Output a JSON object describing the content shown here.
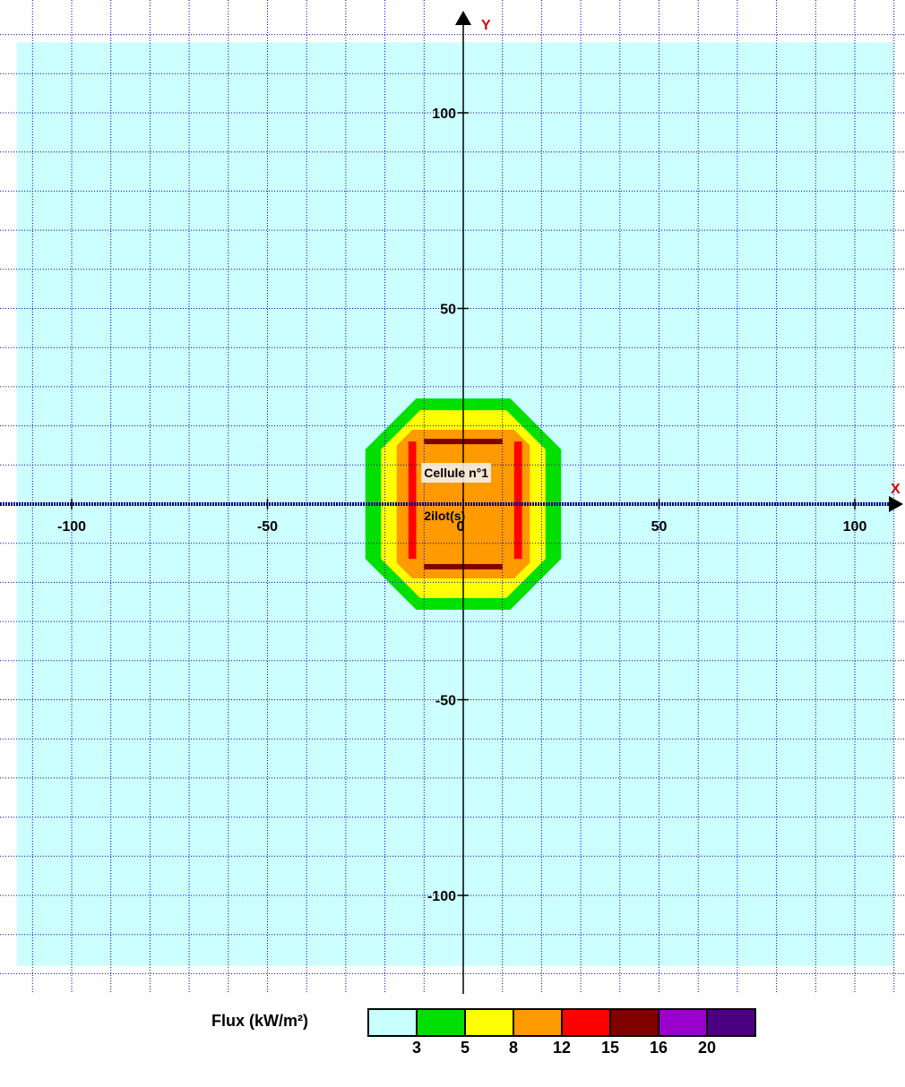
{
  "chart_data": {
    "type": "heatmap",
    "title": "",
    "xlabel": "X",
    "ylabel": "Y",
    "xlim": [
      -115,
      112
    ],
    "ylim": [
      -126,
      128
    ],
    "x_ticks": [
      -100,
      -50,
      0,
      50,
      100
    ],
    "y_ticks": [
      100,
      50,
      -50,
      -100
    ],
    "x_tick_labels": [
      "-100",
      "-50",
      "0",
      "50",
      "100"
    ],
    "y_tick_labels": [
      "100",
      "50",
      "-50",
      "-100"
    ],
    "grid": true,
    "grid_step": 10,
    "background_extent": {
      "x": [
        -114,
        110
      ],
      "y": [
        -118,
        118
      ]
    },
    "zones": [
      {
        "flux_min": 3,
        "color": "#00e000",
        "half_width": 25,
        "half_height": 27,
        "corner_cut": 13
      },
      {
        "flux_min": 5,
        "color": "#ffff00",
        "half_width": 21,
        "half_height": 24,
        "corner_cut": 10
      },
      {
        "flux_min": 8,
        "color": "#ff9a00",
        "half_width": 17,
        "half_height": 19,
        "corner_cut": 4
      }
    ],
    "walls": [
      {
        "flux_min": 12,
        "color": "#ff0000",
        "orientation": "vertical",
        "x": [
          -14,
          -12,
          13,
          15
        ],
        "y_range": [
          -14,
          16
        ]
      },
      {
        "flux_min": 15,
        "color": "#800000",
        "orientation": "horizontal",
        "y": [
          16,
          -16
        ],
        "x_range": [
          -10,
          10
        ]
      }
    ],
    "annotations": [
      {
        "text": "Cellule n°1",
        "x": -10,
        "y": 8
      },
      {
        "text": "2ilot(s)",
        "x": -10,
        "y": -3
      }
    ],
    "legend": {
      "title": "Flux (kW/m²)",
      "placement": "bottom",
      "colors": [
        "#c8ffff",
        "#00e000",
        "#ffff00",
        "#ff9a00",
        "#ff0000",
        "#800000",
        "#9900cc",
        "#4b0082"
      ],
      "labels": [
        "3",
        "5",
        "8",
        "12",
        "15",
        "16",
        "20"
      ]
    },
    "colors": {
      "background_fill": "#ccffff",
      "grid_line": "#0000cc",
      "axis_line": "#000000",
      "axis_arrow": "#000000",
      "axis_name": "#e00000",
      "annotation_bg": "#f4f4f4"
    }
  }
}
